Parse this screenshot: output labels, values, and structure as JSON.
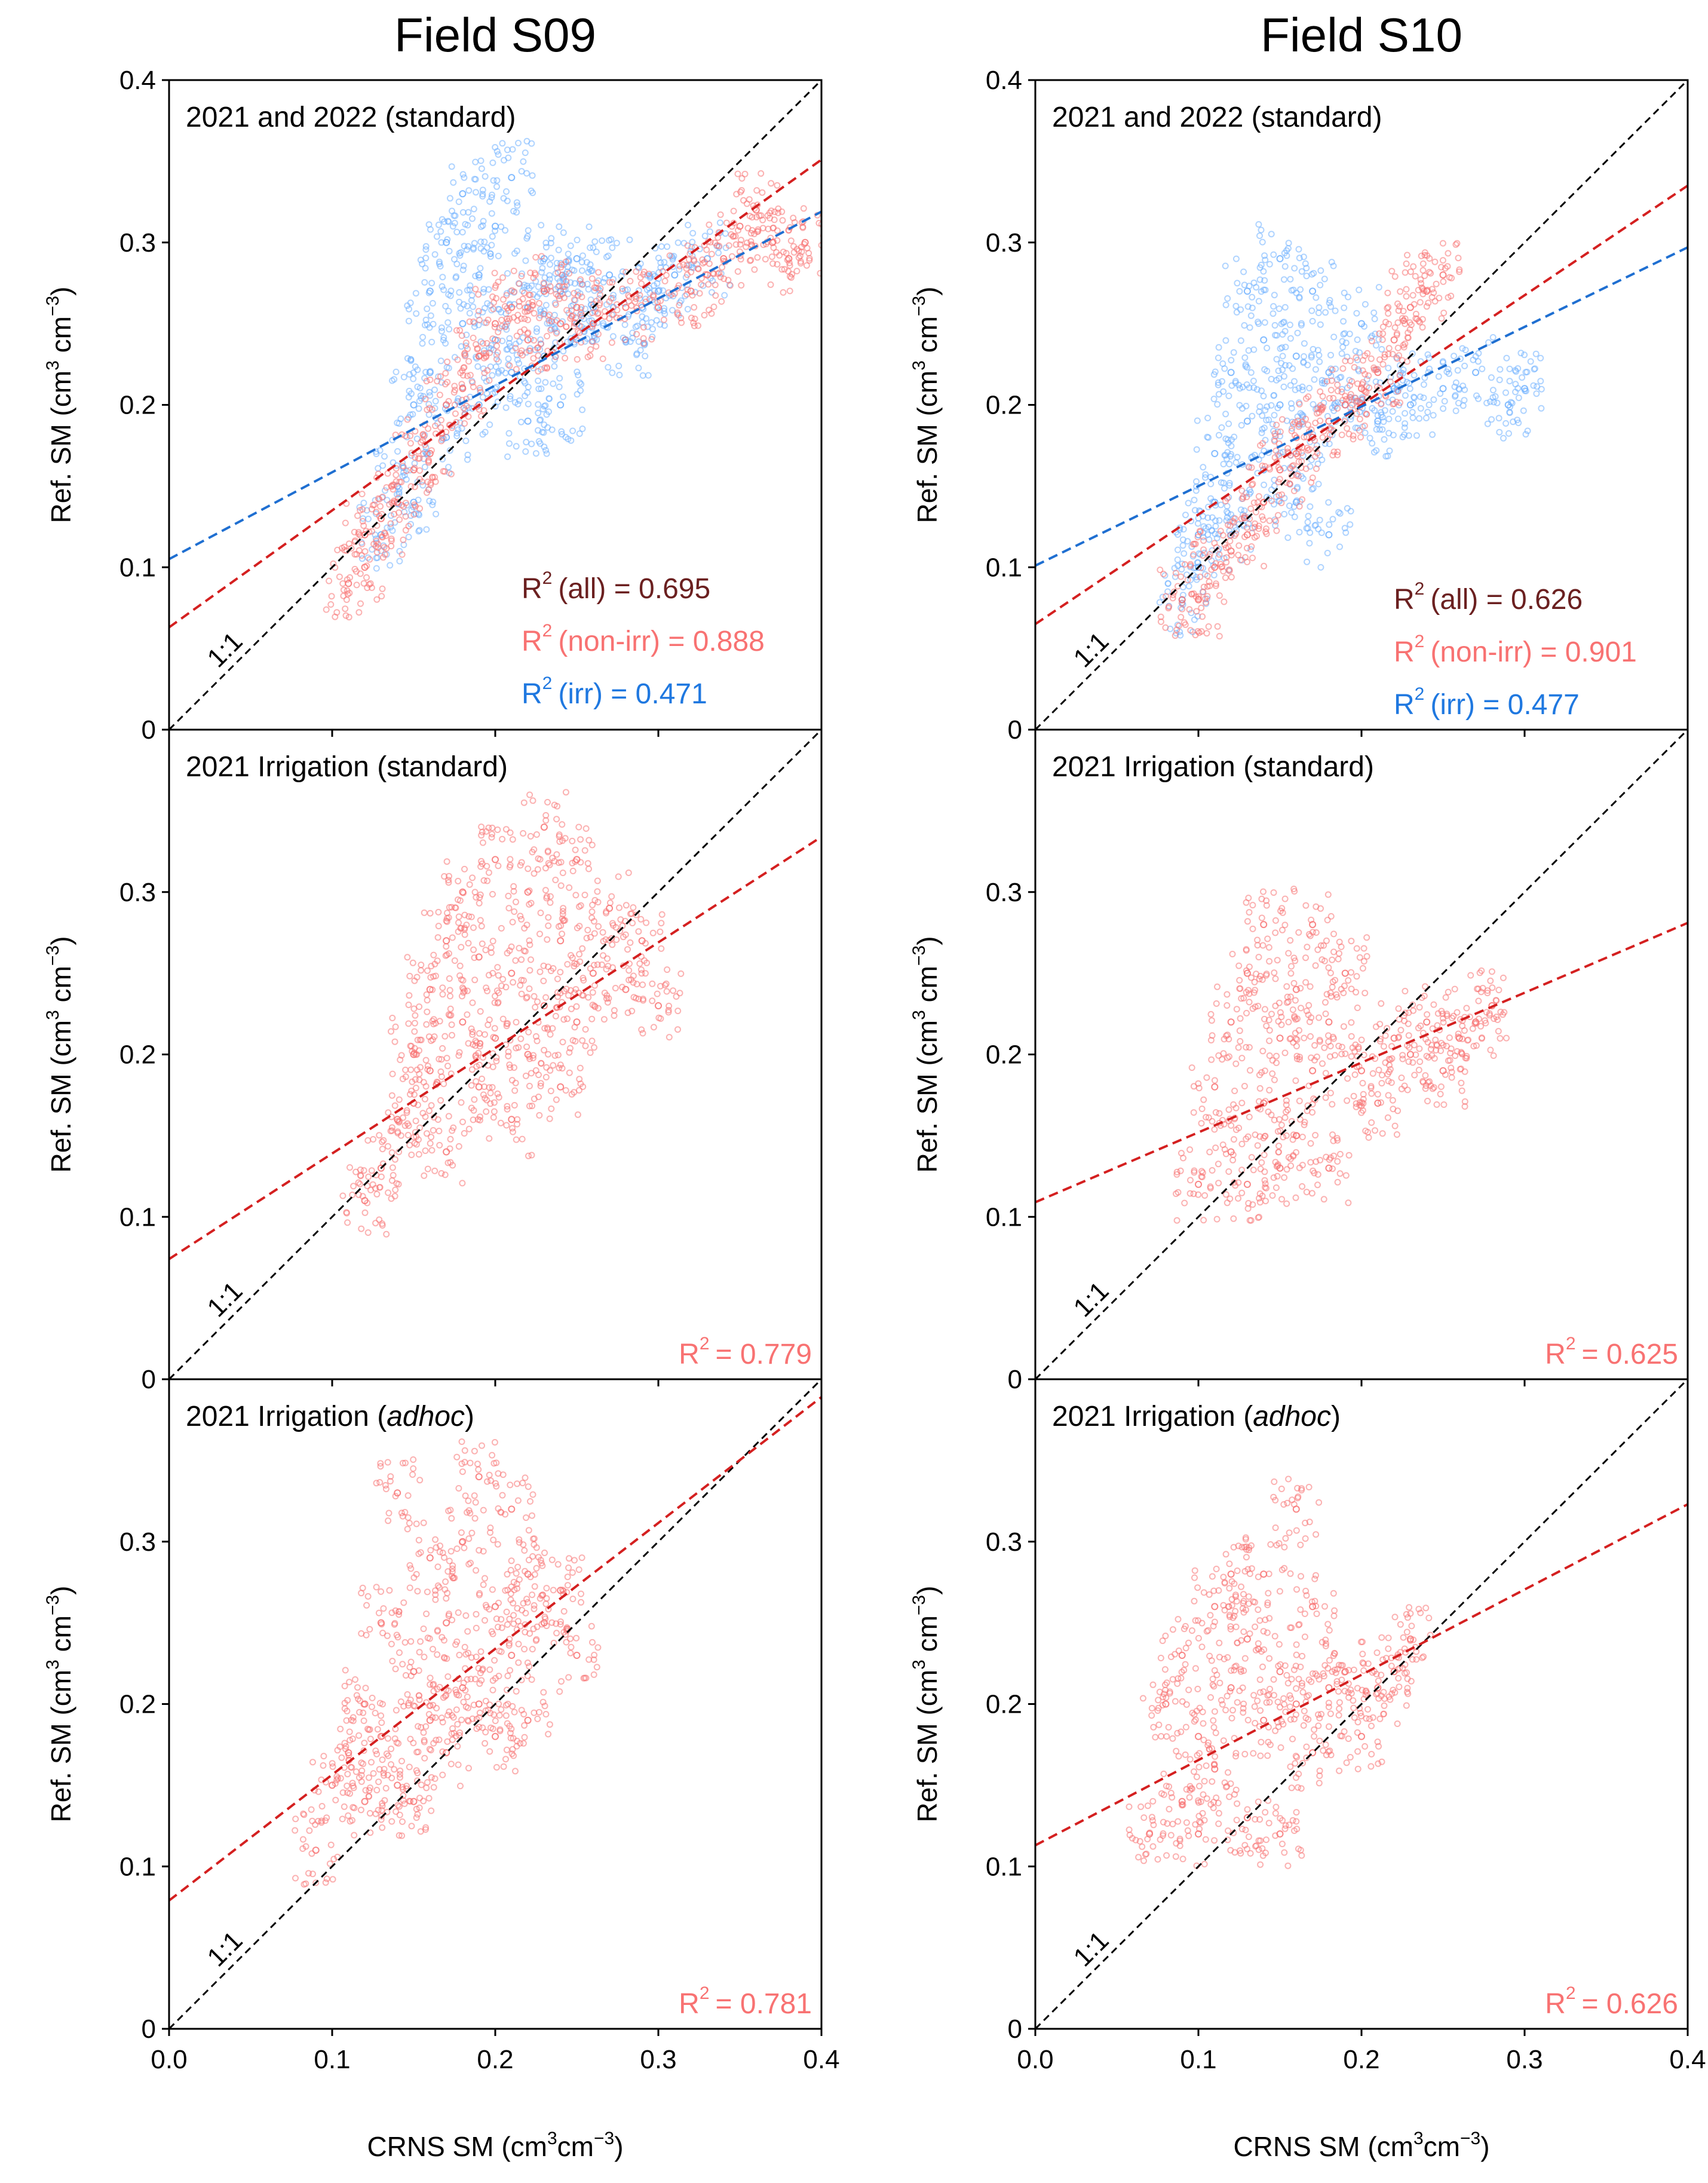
{
  "figure": {
    "columns": [
      {
        "title": "Field S09"
      },
      {
        "title": "Field S10"
      }
    ]
  },
  "colors": {
    "non_irr_points": "#f87272",
    "irr_points": "#6fb0ff",
    "fit_nonirr": "#d42020",
    "fit_irr": "#1f6fd1",
    "one_to_one": "#000000",
    "r2_all": "#6b2020",
    "r2_nonirr": "#f87272",
    "r2_irr": "#1f78e0"
  },
  "axis_text": {
    "xlabel": "CRNS SM (cm",
    "xlabel_sup1": "3",
    "xlabel_mid": "cm",
    "xlabel_sup2": "−3",
    "xlabel_end": ")",
    "ylabel": "Ref. SM (cm",
    "ylabel_sup1": "3",
    "ylabel_mid": " cm",
    "ylabel_sup2": "−3",
    "ylabel_end": ")",
    "one_to_one": "1:1",
    "r2_prefix": "R",
    "r2_sup": "2"
  },
  "chart_data": [
    {
      "type": "scatter",
      "col": 0,
      "row": 0,
      "label": "2021 and 2022 (standard)",
      "label_italic": "",
      "label_end": "",
      "xlim": [
        0,
        0.4
      ],
      "ylim": [
        0,
        0.4
      ],
      "xticks": [
        "0.0",
        "0.1",
        "0.2",
        "0.3",
        "0.4"
      ],
      "yticks": [
        "0",
        "0.1",
        "0.2",
        "0.3",
        "0.4"
      ],
      "series": [
        {
          "key": "irr",
          "color": "#6fb0ff",
          "x": [
            0.13,
            0.14,
            0.15,
            0.15,
            0.16,
            0.16,
            0.17,
            0.17,
            0.18,
            0.18,
            0.19,
            0.19,
            0.2,
            0.2,
            0.21,
            0.21,
            0.22,
            0.22,
            0.23,
            0.23,
            0.24,
            0.24,
            0.25,
            0.25,
            0.26,
            0.27,
            0.28,
            0.29,
            0.3,
            0.31,
            0.33
          ],
          "y": [
            0.12,
            0.15,
            0.2,
            0.14,
            0.22,
            0.27,
            0.18,
            0.3,
            0.25,
            0.33,
            0.2,
            0.28,
            0.24,
            0.31,
            0.22,
            0.34,
            0.26,
            0.19,
            0.29,
            0.23,
            0.27,
            0.2,
            0.25,
            0.29,
            0.26,
            0.28,
            0.24,
            0.26,
            0.27,
            0.28,
            0.29
          ]
        },
        {
          "key": "nonirr",
          "color": "#f87272",
          "x": [
            0.11,
            0.12,
            0.12,
            0.13,
            0.14,
            0.15,
            0.16,
            0.17,
            0.18,
            0.19,
            0.2,
            0.21,
            0.22,
            0.23,
            0.24,
            0.25,
            0.26,
            0.28,
            0.3,
            0.32,
            0.33,
            0.34,
            0.35,
            0.36,
            0.37,
            0.38,
            0.39
          ],
          "y": [
            0.09,
            0.12,
            0.1,
            0.13,
            0.14,
            0.16,
            0.17,
            0.2,
            0.21,
            0.23,
            0.25,
            0.26,
            0.24,
            0.27,
            0.25,
            0.26,
            0.25,
            0.26,
            0.26,
            0.27,
            0.28,
            0.29,
            0.31,
            0.32,
            0.3,
            0.29,
            0.3
          ]
        }
      ],
      "fits": [
        {
          "key": "nonirr",
          "color": "#d42020",
          "intercept": 0.063,
          "slope": 0.72
        },
        {
          "key": "irr",
          "color": "#1f6fd1",
          "intercept": 0.105,
          "slope": 0.535
        }
      ],
      "r2": [
        {
          "text": "(all) = 0.695",
          "color": "#6b2020"
        },
        {
          "text": "(non-irr) = 0.888",
          "color": "#f87272"
        },
        {
          "text": "(irr) = 0.471",
          "color": "#1f78e0"
        }
      ]
    },
    {
      "type": "scatter",
      "col": 1,
      "row": 0,
      "label": "2021 and 2022  (standard)",
      "label_italic": "",
      "label_end": "",
      "xlim": [
        0,
        0.4
      ],
      "ylim": [
        0,
        0.4
      ],
      "xticks": [
        "0.0",
        "0.1",
        "0.2",
        "0.3",
        "0.4"
      ],
      "yticks": [
        "0",
        "0.1",
        "0.2",
        "0.3",
        "0.4"
      ],
      "series": [
        {
          "key": "irr",
          "color": "#6fb0ff",
          "x": [
            0.09,
            0.1,
            0.1,
            0.11,
            0.11,
            0.12,
            0.12,
            0.13,
            0.13,
            0.14,
            0.14,
            0.15,
            0.15,
            0.16,
            0.16,
            0.17,
            0.17,
            0.18,
            0.18,
            0.19,
            0.2,
            0.21,
            0.22,
            0.23,
            0.25,
            0.27,
            0.29,
            0.3
          ],
          "y": [
            0.08,
            0.12,
            0.1,
            0.17,
            0.14,
            0.22,
            0.12,
            0.27,
            0.19,
            0.24,
            0.16,
            0.29,
            0.2,
            0.23,
            0.14,
            0.27,
            0.18,
            0.22,
            0.12,
            0.2,
            0.25,
            0.19,
            0.21,
            0.2,
            0.21,
            0.22,
            0.2,
            0.21
          ]
        },
        {
          "key": "nonirr",
          "color": "#f87272",
          "x": [
            0.09,
            0.1,
            0.11,
            0.12,
            0.13,
            0.14,
            0.15,
            0.16,
            0.17,
            0.18,
            0.19,
            0.2,
            0.21,
            0.22,
            0.23,
            0.24,
            0.25
          ],
          "y": [
            0.08,
            0.08,
            0.1,
            0.11,
            0.12,
            0.14,
            0.16,
            0.17,
            0.18,
            0.19,
            0.2,
            0.21,
            0.22,
            0.24,
            0.26,
            0.27,
            0.28
          ]
        }
      ],
      "fits": [
        {
          "key": "nonirr",
          "color": "#d42020",
          "intercept": 0.065,
          "slope": 0.675
        },
        {
          "key": "irr",
          "color": "#1f6fd1",
          "intercept": 0.101,
          "slope": 0.49
        }
      ],
      "r2": [
        {
          "text": "(all) = 0.626",
          "color": "#6b2020"
        },
        {
          "text": "(non-irr) = 0.901",
          "color": "#f87272"
        },
        {
          "text": "(irr) = 0.477",
          "color": "#1f78e0"
        }
      ]
    },
    {
      "type": "scatter",
      "col": 0,
      "row": 1,
      "label": "2021 Irrigation (standard)",
      "label_italic": "",
      "label_end": "",
      "xlim": [
        0,
        0.4
      ],
      "ylim": [
        0,
        0.4
      ],
      "xticks": [
        "0.0",
        "0.1",
        "0.2",
        "0.3",
        "0.4"
      ],
      "yticks": [
        "0",
        "0.1",
        "0.2",
        "0.3",
        "0.4"
      ],
      "series": [
        {
          "key": "nonirr",
          "color": "#f87272",
          "x": [
            0.12,
            0.13,
            0.14,
            0.15,
            0.15,
            0.16,
            0.16,
            0.17,
            0.17,
            0.18,
            0.18,
            0.19,
            0.19,
            0.2,
            0.2,
            0.21,
            0.21,
            0.22,
            0.22,
            0.23,
            0.23,
            0.24,
            0.24,
            0.25,
            0.25,
            0.26,
            0.27,
            0.28,
            0.29,
            0.3
          ],
          "y": [
            0.11,
            0.13,
            0.16,
            0.2,
            0.17,
            0.24,
            0.19,
            0.27,
            0.14,
            0.22,
            0.3,
            0.18,
            0.26,
            0.21,
            0.32,
            0.16,
            0.25,
            0.2,
            0.3,
            0.23,
            0.34,
            0.18,
            0.27,
            0.22,
            0.32,
            0.25,
            0.29,
            0.24,
            0.27,
            0.23
          ]
        }
      ],
      "fits": [
        {
          "key": "nonirr",
          "color": "#d42020",
          "intercept": 0.074,
          "slope": 0.65
        }
      ],
      "r2": [
        {
          "text": "= 0.779",
          "color": "#f87272"
        }
      ]
    },
    {
      "type": "scatter",
      "col": 1,
      "row": 1,
      "label": "2021 Irrigation (standard)",
      "label_italic": "",
      "label_end": "",
      "xlim": [
        0,
        0.4
      ],
      "ylim": [
        0,
        0.4
      ],
      "xticks": [
        "0.0",
        "0.1",
        "0.2",
        "0.3",
        "0.4"
      ],
      "yticks": [
        "0",
        "0.1",
        "0.2",
        "0.3",
        "0.4"
      ],
      "series": [
        {
          "key": "nonirr",
          "color": "#f87272",
          "x": [
            0.1,
            0.11,
            0.12,
            0.12,
            0.13,
            0.13,
            0.14,
            0.14,
            0.15,
            0.15,
            0.16,
            0.16,
            0.17,
            0.17,
            0.18,
            0.18,
            0.19,
            0.2,
            0.21,
            0.22,
            0.23,
            0.24,
            0.25,
            0.26,
            0.27,
            0.28
          ],
          "y": [
            0.12,
            0.18,
            0.14,
            0.22,
            0.12,
            0.25,
            0.17,
            0.28,
            0.13,
            0.21,
            0.24,
            0.15,
            0.28,
            0.19,
            0.22,
            0.13,
            0.25,
            0.19,
            0.17,
            0.21,
            0.2,
            0.22,
            0.19,
            0.21,
            0.22,
            0.23
          ]
        }
      ],
      "fits": [
        {
          "key": "nonirr",
          "color": "#d42020",
          "intercept": 0.109,
          "slope": 0.43
        }
      ],
      "r2": [
        {
          "text": "= 0.625",
          "color": "#f87272"
        }
      ]
    },
    {
      "type": "scatter",
      "col": 0,
      "row": 2,
      "label": "2021 Irrigation (",
      "label_italic": "adhoc",
      "label_end": ")",
      "xlim": [
        0,
        0.4
      ],
      "ylim": [
        0,
        0.4
      ],
      "xticks": [
        "0.0",
        "0.1",
        "0.2",
        "0.3",
        "0.4"
      ],
      "yticks": [
        "0",
        "0.1",
        "0.2",
        "0.3",
        "0.4"
      ],
      "series": [
        {
          "key": "nonirr",
          "color": "#f87272",
          "x": [
            0.09,
            0.1,
            0.11,
            0.12,
            0.12,
            0.13,
            0.13,
            0.14,
            0.14,
            0.15,
            0.15,
            0.16,
            0.16,
            0.17,
            0.17,
            0.18,
            0.18,
            0.19,
            0.19,
            0.2,
            0.2,
            0.21,
            0.21,
            0.22,
            0.22,
            0.23,
            0.24,
            0.25
          ],
          "y": [
            0.11,
            0.15,
            0.17,
            0.14,
            0.2,
            0.18,
            0.25,
            0.15,
            0.33,
            0.22,
            0.14,
            0.29,
            0.19,
            0.25,
            0.17,
            0.3,
            0.21,
            0.34,
            0.2,
            0.26,
            0.18,
            0.32,
            0.23,
            0.28,
            0.19,
            0.25,
            0.27,
            0.23
          ]
        }
      ],
      "fits": [
        {
          "key": "nonirr",
          "color": "#d42020",
          "intercept": 0.079,
          "slope": 0.775
        }
      ],
      "r2": [
        {
          "text": "= 0.781",
          "color": "#f87272"
        }
      ]
    },
    {
      "type": "scatter",
      "col": 1,
      "row": 2,
      "label": "2021 Irrigation (",
      "label_italic": "adhoc",
      "label_end": ")",
      "xlim": [
        0,
        0.4
      ],
      "ylim": [
        0,
        0.4
      ],
      "xticks": [
        "0.0",
        "0.1",
        "0.2",
        "0.3",
        "0.4"
      ],
      "yticks": [
        "0",
        "0.1",
        "0.2",
        "0.3",
        "0.4"
      ],
      "series": [
        {
          "key": "nonirr",
          "color": "#f87272",
          "x": [
            0.07,
            0.08,
            0.09,
            0.09,
            0.1,
            0.1,
            0.11,
            0.11,
            0.12,
            0.12,
            0.13,
            0.13,
            0.14,
            0.14,
            0.15,
            0.15,
            0.16,
            0.16,
            0.17,
            0.17,
            0.18,
            0.19,
            0.2,
            0.21,
            0.22,
            0.23
          ],
          "y": [
            0.12,
            0.2,
            0.14,
            0.23,
            0.18,
            0.12,
            0.26,
            0.16,
            0.21,
            0.28,
            0.13,
            0.24,
            0.19,
            0.28,
            0.12,
            0.22,
            0.2,
            0.32,
            0.17,
            0.26,
            0.21,
            0.22,
            0.18,
            0.21,
            0.22,
            0.24
          ]
        }
      ],
      "fits": [
        {
          "key": "nonirr",
          "color": "#d42020",
          "intercept": 0.113,
          "slope": 0.525
        }
      ],
      "r2": [
        {
          "text": "= 0.626",
          "color": "#f87272"
        }
      ]
    }
  ]
}
